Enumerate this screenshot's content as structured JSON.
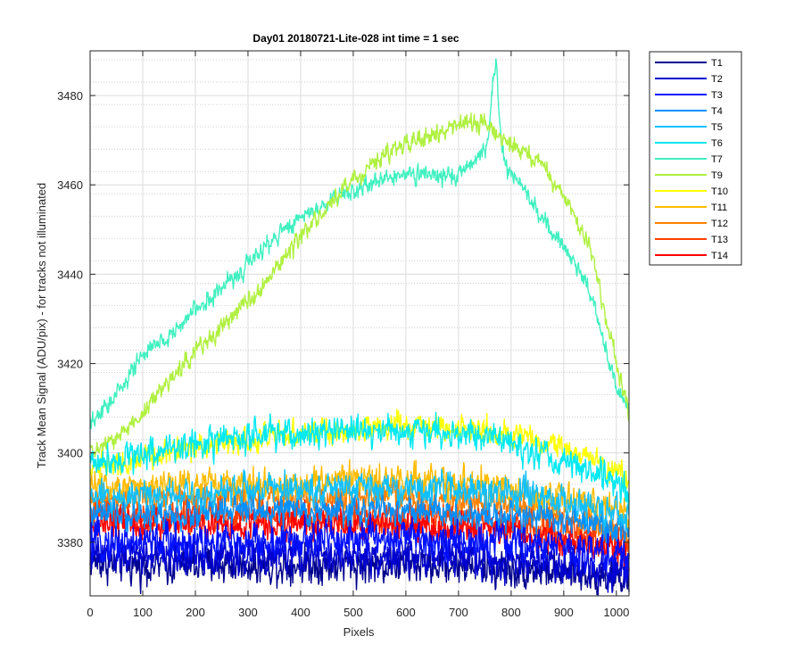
{
  "chart_data": {
    "type": "line",
    "title": "Day01 20180721-Lite-028 int time = 1 sec",
    "xlabel": "Pixels",
    "ylabel": "Track Mean Signal (ADU/pix) - for tracks not illuminated",
    "xlim": [
      0,
      1024
    ],
    "ylim": [
      3368,
      3490
    ],
    "xticks": [
      0,
      100,
      200,
      300,
      400,
      500,
      600,
      700,
      800,
      900,
      1000
    ],
    "yticks": [
      3380,
      3400,
      3420,
      3440,
      3460,
      3480
    ],
    "grid": "major and minor",
    "legend_position": "outside top-right",
    "x_sample": [
      0,
      50,
      100,
      150,
      200,
      250,
      300,
      350,
      400,
      450,
      500,
      550,
      600,
      650,
      700,
      750,
      800,
      850,
      900,
      950,
      1000,
      1024
    ],
    "series": [
      {
        "name": "T1",
        "color": "#00008f",
        "noise": 3.0,
        "values": [
          3376,
          3375,
          3375,
          3375,
          3375,
          3375,
          3375,
          3375,
          3375,
          3375,
          3375,
          3375,
          3375,
          3375,
          3375,
          3374,
          3374,
          3374,
          3373,
          3373,
          3372,
          3372
        ]
      },
      {
        "name": "T2",
        "color": "#0000d0",
        "noise": 3.0,
        "values": [
          3377,
          3377,
          3377,
          3377,
          3377,
          3377,
          3377,
          3377,
          3377,
          3377,
          3377,
          3377,
          3377,
          3377,
          3377,
          3376,
          3376,
          3376,
          3375,
          3375,
          3374,
          3374
        ]
      },
      {
        "name": "T3",
        "color": "#0010ff",
        "noise": 3.0,
        "values": [
          3380,
          3380,
          3380,
          3380,
          3380,
          3380,
          3380,
          3380,
          3380,
          3381,
          3381,
          3381,
          3381,
          3381,
          3380,
          3380,
          3380,
          3379,
          3379,
          3378,
          3377,
          3376
        ]
      },
      {
        "name": "T4",
        "color": "#0090ff",
        "noise": 2.5,
        "values": [
          3386,
          3386,
          3386,
          3386,
          3386,
          3387,
          3387,
          3387,
          3387,
          3387,
          3387,
          3387,
          3387,
          3387,
          3386,
          3386,
          3386,
          3385,
          3385,
          3384,
          3383,
          3382
        ]
      },
      {
        "name": "T5",
        "color": "#10c0ff",
        "noise": 2.5,
        "values": [
          3390,
          3390,
          3391,
          3391,
          3391,
          3391,
          3392,
          3392,
          3392,
          3392,
          3392,
          3392,
          3392,
          3392,
          3392,
          3391,
          3391,
          3390,
          3389,
          3388,
          3386,
          3385
        ]
      },
      {
        "name": "T6",
        "color": "#00e8f0",
        "noise": 2.5,
        "values": [
          3398,
          3399,
          3400,
          3401,
          3402,
          3403,
          3403,
          3404,
          3404,
          3405,
          3405,
          3405,
          3405,
          3405,
          3404,
          3404,
          3402,
          3400,
          3398,
          3396,
          3393,
          3391
        ]
      },
      {
        "name": "T7",
        "color": "#40f0c0",
        "noise": 1.5,
        "values": [
          3406,
          3413,
          3422,
          3426,
          3432,
          3437,
          3442,
          3448,
          3453,
          3456,
          3459,
          3461,
          3462,
          3462,
          3462,
          3468,
          3463,
          3454,
          3446,
          3436,
          3415,
          3408
        ]
      },
      {
        "name": "T9",
        "color": "#b0f040",
        "noise": 1.5,
        "values": [
          3400,
          3403,
          3409,
          3416,
          3423,
          3428,
          3434,
          3441,
          3448,
          3455,
          3461,
          3466,
          3469,
          3471,
          3473,
          3474,
          3469,
          3465,
          3458,
          3446,
          3420,
          3409
        ]
      },
      {
        "name": "T10",
        "color": "#ffff00",
        "noise": 2.0,
        "values": [
          3397,
          3398,
          3399,
          3400,
          3401,
          3402,
          3403,
          3404,
          3404,
          3405,
          3405,
          3406,
          3406,
          3406,
          3405,
          3405,
          3404,
          3403,
          3401,
          3399,
          3396,
          3393
        ]
      },
      {
        "name": "T11",
        "color": "#ffbb00",
        "noise": 2.5,
        "values": [
          3393,
          3393,
          3393,
          3393,
          3393,
          3393,
          3393,
          3393,
          3393,
          3394,
          3394,
          3394,
          3394,
          3394,
          3393,
          3393,
          3392,
          3391,
          3390,
          3389,
          3387,
          3385
        ]
      },
      {
        "name": "T12",
        "color": "#ff8000",
        "noise": 2.5,
        "values": [
          3390,
          3390,
          3390,
          3390,
          3390,
          3390,
          3390,
          3390,
          3390,
          3390,
          3390,
          3390,
          3390,
          3390,
          3389,
          3389,
          3388,
          3387,
          3386,
          3385,
          3383,
          3382
        ]
      },
      {
        "name": "T13",
        "color": "#ff4000",
        "noise": 2.5,
        "values": [
          3386,
          3386,
          3386,
          3386,
          3386,
          3386,
          3386,
          3386,
          3386,
          3386,
          3386,
          3386,
          3386,
          3386,
          3385,
          3385,
          3384,
          3383,
          3382,
          3381,
          3380,
          3379
        ]
      },
      {
        "name": "T14",
        "color": "#ff0000",
        "noise": 2.5,
        "values": [
          3384,
          3384,
          3384,
          3384,
          3384,
          3384,
          3384,
          3384,
          3384,
          3384,
          3384,
          3384,
          3384,
          3384,
          3383,
          3383,
          3382,
          3381,
          3380,
          3379,
          3378,
          3377
        ]
      }
    ]
  }
}
